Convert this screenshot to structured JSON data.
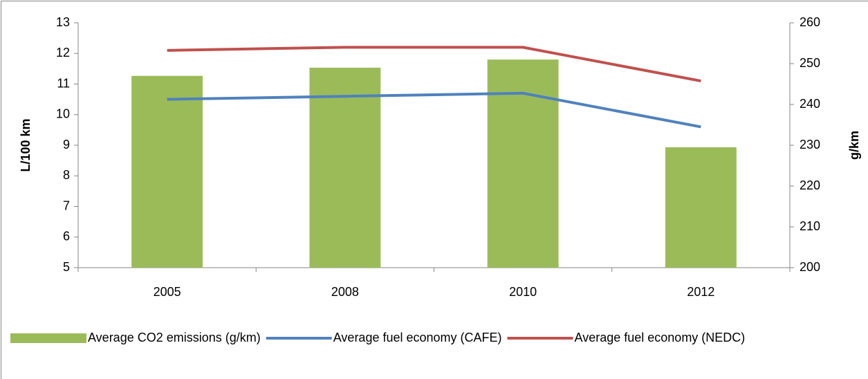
{
  "chart_data": {
    "type": "bar-line",
    "categories": [
      "2005",
      "2008",
      "2010",
      "2012"
    ],
    "ylabel": "L/100 km",
    "y2label": "g/km",
    "ylim": [
      5,
      13
    ],
    "yticks": [
      5,
      6,
      7,
      8,
      9,
      10,
      11,
      12,
      13
    ],
    "y2lim": [
      200,
      260
    ],
    "y2ticks": [
      200,
      210,
      220,
      230,
      240,
      250,
      260
    ],
    "legend": "bottom",
    "series": [
      {
        "name": "Average CO2 emissions (g/km)",
        "type": "bar",
        "axis": "y2",
        "color": "#9bbb59",
        "values": [
          247,
          249,
          251,
          229.5
        ]
      },
      {
        "name": "Average fuel economy (CAFE)",
        "type": "line",
        "color": "#4f81bd",
        "values": [
          10.5,
          10.6,
          10.7,
          9.6
        ]
      },
      {
        "name": "Average fuel economy (NEDC)",
        "type": "line",
        "color": "#c0504d",
        "values": [
          12.1,
          12.2,
          12.2,
          11.1
        ]
      }
    ]
  }
}
